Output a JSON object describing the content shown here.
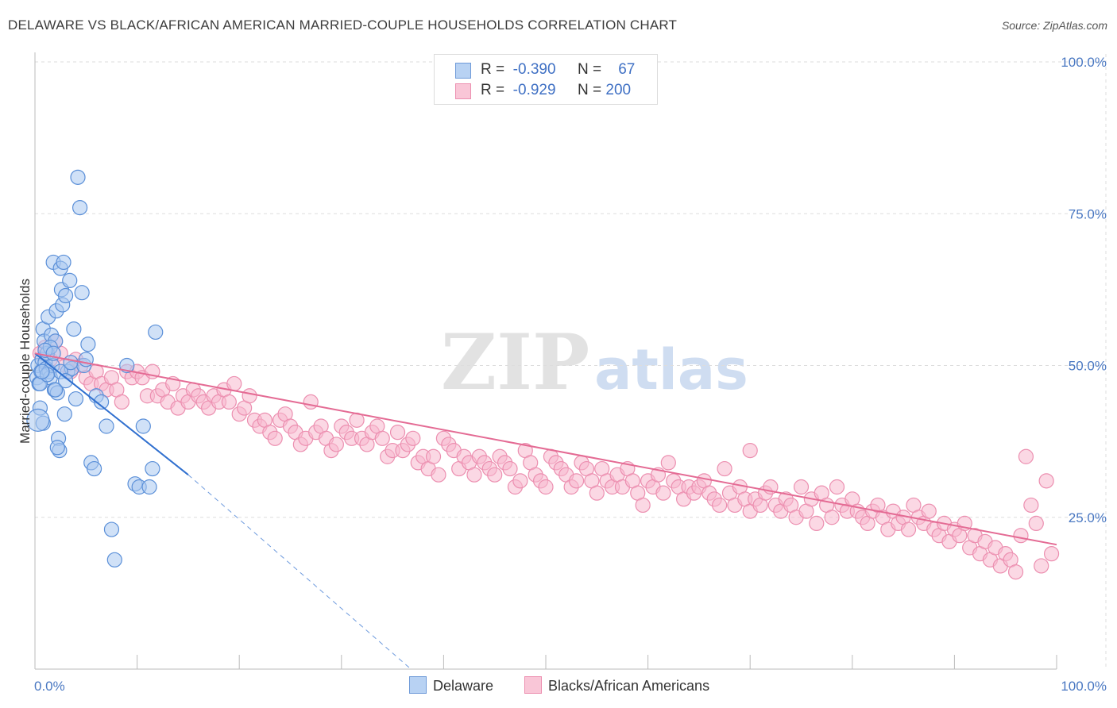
{
  "title": "DELAWARE VS BLACK/AFRICAN AMERICAN MARRIED-COUPLE HOUSEHOLDS CORRELATION CHART",
  "source": "Source: ZipAtlas.com",
  "watermark": {
    "zip": "ZIP",
    "atlas": "atlas"
  },
  "stats": [
    {
      "r_label": "R =",
      "r_value": "-0.390",
      "n_label": "N =",
      "n_value": "67"
    },
    {
      "r_label": "R =",
      "r_value": "-0.929",
      "n_label": "N =",
      "n_value": "200"
    }
  ],
  "legend": [
    {
      "label": "Delaware"
    },
    {
      "label": "Blacks/African Americans"
    }
  ],
  "colors": {
    "delaware_fill": "#aac8f0",
    "delaware_stroke": "#5a8fd8",
    "delaware_line": "#2f6fcf",
    "black_fill": "#f7b8cd",
    "black_stroke": "#ec8fb0",
    "black_line": "#e46b94",
    "tick_text": "#4a78c2",
    "grid": "#dddddd"
  },
  "chart_data": {
    "type": "scatter",
    "title": "DELAWARE VS BLACK/AFRICAN AMERICAN MARRIED-COUPLE HOUSEHOLDS CORRELATION CHART",
    "xlabel": "",
    "ylabel": "Married-couple Households",
    "xlim": [
      0,
      100
    ],
    "ylim": [
      0,
      100
    ],
    "x_tick_labels": [
      {
        "value": 0,
        "label": "0.0%"
      },
      {
        "value": 100,
        "label": "100.0%"
      }
    ],
    "y_tick_labels": [
      {
        "value": 25,
        "label": "25.0%"
      },
      {
        "value": 50,
        "label": "50.0%"
      },
      {
        "value": 75,
        "label": "75.0%"
      },
      {
        "value": 100,
        "label": "100.0%"
      }
    ],
    "grid": true,
    "legend_position": "bottom",
    "series": [
      {
        "name": "Delaware",
        "r": -0.39,
        "n": 67,
        "trend": {
          "x0": 0.0,
          "y0": 52.0,
          "x1": 15.0,
          "y1": 32.0,
          "dash_to_x": 36.8,
          "dash_to_y": 0.0
        },
        "points": [
          [
            0.2,
            48.0
          ],
          [
            0.3,
            50.0
          ],
          [
            0.4,
            47.0
          ],
          [
            0.5,
            43.0
          ],
          [
            0.6,
            49.0
          ],
          [
            0.7,
            51.0
          ],
          [
            0.8,
            56.0
          ],
          [
            0.9,
            54.0
          ],
          [
            1.0,
            50.5
          ],
          [
            1.1,
            49.5
          ],
          [
            1.2,
            52.0
          ],
          [
            1.3,
            58.0
          ],
          [
            1.4,
            49.0
          ],
          [
            1.5,
            48.0
          ],
          [
            1.6,
            55.0
          ],
          [
            1.7,
            50.0
          ],
          [
            1.8,
            67.0
          ],
          [
            1.9,
            46.0
          ],
          [
            2.0,
            54.0
          ],
          [
            2.1,
            59.0
          ],
          [
            2.2,
            45.5
          ],
          [
            2.3,
            38.0
          ],
          [
            2.4,
            36.0
          ],
          [
            2.5,
            66.0
          ],
          [
            2.6,
            62.5
          ],
          [
            2.7,
            60.0
          ],
          [
            2.8,
            67.0
          ],
          [
            2.9,
            42.0
          ],
          [
            3.0,
            61.5
          ],
          [
            3.2,
            49.0
          ],
          [
            3.4,
            64.0
          ],
          [
            3.6,
            49.5
          ],
          [
            3.8,
            56.0
          ],
          [
            4.0,
            44.5
          ],
          [
            4.2,
            81.0
          ],
          [
            4.4,
            76.0
          ],
          [
            4.6,
            62.0
          ],
          [
            4.8,
            50.0
          ],
          [
            5.0,
            51.0
          ],
          [
            5.2,
            53.5
          ],
          [
            5.5,
            34.0
          ],
          [
            5.8,
            33.0
          ],
          [
            6.0,
            45.0
          ],
          [
            6.5,
            44.0
          ],
          [
            7.0,
            40.0
          ],
          [
            7.5,
            23.0
          ],
          [
            7.8,
            18.0
          ],
          [
            9.0,
            50.0
          ],
          [
            9.8,
            30.5
          ],
          [
            10.2,
            30.0
          ],
          [
            10.6,
            40.0
          ],
          [
            11.2,
            30.0
          ],
          [
            11.8,
            55.5
          ],
          [
            11.5,
            33.0
          ],
          [
            0.8,
            40.5
          ],
          [
            1.5,
            53.0
          ],
          [
            2.0,
            46.0
          ],
          [
            0.5,
            47.0
          ],
          [
            1.0,
            52.5
          ],
          [
            2.5,
            49.0
          ],
          [
            3.0,
            47.5
          ],
          [
            0.3,
            41.0
          ],
          [
            1.2,
            48.5
          ],
          [
            3.5,
            50.5
          ],
          [
            0.7,
            49.0
          ],
          [
            2.2,
            36.5
          ],
          [
            1.8,
            52.0
          ]
        ]
      },
      {
        "name": "Blacks/African Americans",
        "r": -0.929,
        "n": 200,
        "trend": {
          "x0": 0.0,
          "y0": 52.0,
          "x1": 100.0,
          "y1": 20.5
        },
        "points": [
          [
            0.5,
            52
          ],
          [
            1,
            53
          ],
          [
            1.5,
            51
          ],
          [
            2,
            54
          ],
          [
            2.5,
            52
          ],
          [
            3,
            50
          ],
          [
            3.5,
            49
          ],
          [
            4,
            51
          ],
          [
            4.5,
            50
          ],
          [
            5,
            48
          ],
          [
            5.5,
            47
          ],
          [
            6,
            49
          ],
          [
            6.5,
            47
          ],
          [
            7,
            46
          ],
          [
            7.5,
            48
          ],
          [
            8,
            46
          ],
          [
            8.5,
            44
          ],
          [
            9,
            49
          ],
          [
            9.5,
            48
          ],
          [
            10,
            49
          ],
          [
            10.5,
            48
          ],
          [
            11,
            45
          ],
          [
            11.5,
            49
          ],
          [
            12,
            45
          ],
          [
            12.5,
            46
          ],
          [
            13,
            44
          ],
          [
            13.5,
            47
          ],
          [
            14,
            43
          ],
          [
            14.5,
            45
          ],
          [
            15,
            44
          ],
          [
            15.5,
            46
          ],
          [
            16,
            45
          ],
          [
            16.5,
            44
          ],
          [
            17,
            43
          ],
          [
            17.5,
            45
          ],
          [
            18,
            44
          ],
          [
            18.5,
            46
          ],
          [
            19,
            44
          ],
          [
            19.5,
            47
          ],
          [
            20,
            42
          ],
          [
            20.5,
            43
          ],
          [
            21,
            45
          ],
          [
            21.5,
            41
          ],
          [
            22,
            40
          ],
          [
            22.5,
            41
          ],
          [
            23,
            39
          ],
          [
            23.5,
            38
          ],
          [
            24,
            41
          ],
          [
            24.5,
            42
          ],
          [
            25,
            40
          ],
          [
            25.5,
            39
          ],
          [
            26,
            37
          ],
          [
            26.5,
            38
          ],
          [
            27,
            44
          ],
          [
            27.5,
            39
          ],
          [
            28,
            40
          ],
          [
            28.5,
            38
          ],
          [
            29,
            36
          ],
          [
            29.5,
            37
          ],
          [
            30,
            40
          ],
          [
            30.5,
            39
          ],
          [
            31,
            38
          ],
          [
            31.5,
            41
          ],
          [
            32,
            38
          ],
          [
            32.5,
            37
          ],
          [
            33,
            39
          ],
          [
            33.5,
            40
          ],
          [
            34,
            38
          ],
          [
            34.5,
            35
          ],
          [
            35,
            36
          ],
          [
            35.5,
            39
          ],
          [
            36,
            36
          ],
          [
            36.5,
            37
          ],
          [
            37,
            38
          ],
          [
            37.5,
            34
          ],
          [
            38,
            35
          ],
          [
            38.5,
            33
          ],
          [
            39,
            35
          ],
          [
            39.5,
            32
          ],
          [
            40,
            38
          ],
          [
            40.5,
            37
          ],
          [
            41,
            36
          ],
          [
            41.5,
            33
          ],
          [
            42,
            35
          ],
          [
            42.5,
            34
          ],
          [
            43,
            32
          ],
          [
            43.5,
            35
          ],
          [
            44,
            34
          ],
          [
            44.5,
            33
          ],
          [
            45,
            32
          ],
          [
            45.5,
            35
          ],
          [
            46,
            34
          ],
          [
            46.5,
            33
          ],
          [
            47,
            30
          ],
          [
            47.5,
            31
          ],
          [
            48,
            36
          ],
          [
            48.5,
            34
          ],
          [
            49,
            32
          ],
          [
            49.5,
            31
          ],
          [
            50,
            30
          ],
          [
            50.5,
            35
          ],
          [
            51,
            34
          ],
          [
            51.5,
            33
          ],
          [
            52,
            32
          ],
          [
            52.5,
            30
          ],
          [
            53,
            31
          ],
          [
            53.5,
            34
          ],
          [
            54,
            33
          ],
          [
            54.5,
            31
          ],
          [
            55,
            29
          ],
          [
            55.5,
            33
          ],
          [
            56,
            31
          ],
          [
            56.5,
            30
          ],
          [
            57,
            32
          ],
          [
            57.5,
            30
          ],
          [
            58,
            33
          ],
          [
            58.5,
            31
          ],
          [
            59,
            29
          ],
          [
            59.5,
            27
          ],
          [
            60,
            31
          ],
          [
            60.5,
            30
          ],
          [
            61,
            32
          ],
          [
            61.5,
            29
          ],
          [
            62,
            34
          ],
          [
            62.5,
            31
          ],
          [
            63,
            30
          ],
          [
            63.5,
            28
          ],
          [
            64,
            30
          ],
          [
            64.5,
            29
          ],
          [
            65,
            30
          ],
          [
            65.5,
            31
          ],
          [
            66,
            29
          ],
          [
            66.5,
            28
          ],
          [
            67,
            27
          ],
          [
            67.5,
            33
          ],
          [
            68,
            29
          ],
          [
            68.5,
            27
          ],
          [
            69,
            30
          ],
          [
            69.5,
            28
          ],
          [
            70,
            26
          ],
          [
            70.5,
            28
          ],
          [
            71,
            27
          ],
          [
            71.5,
            29
          ],
          [
            72,
            30
          ],
          [
            72.5,
            27
          ],
          [
            73,
            26
          ],
          [
            73.5,
            28
          ],
          [
            74,
            27
          ],
          [
            74.5,
            25
          ],
          [
            75,
            30
          ],
          [
            75.5,
            26
          ],
          [
            76,
            28
          ],
          [
            76.5,
            24
          ],
          [
            77,
            29
          ],
          [
            77.5,
            27
          ],
          [
            78,
            25
          ],
          [
            78.5,
            30
          ],
          [
            79,
            27
          ],
          [
            79.5,
            26
          ],
          [
            80,
            28
          ],
          [
            80.5,
            26
          ],
          [
            81,
            25
          ],
          [
            81.5,
            24
          ],
          [
            82,
            26
          ],
          [
            82.5,
            27
          ],
          [
            83,
            25
          ],
          [
            83.5,
            23
          ],
          [
            84,
            26
          ],
          [
            84.5,
            24
          ],
          [
            85,
            25
          ],
          [
            85.5,
            23
          ],
          [
            86,
            27
          ],
          [
            86.5,
            25
          ],
          [
            87,
            24
          ],
          [
            87.5,
            26
          ],
          [
            88,
            23
          ],
          [
            88.5,
            22
          ],
          [
            89,
            24
          ],
          [
            89.5,
            21
          ],
          [
            90,
            23
          ],
          [
            90.5,
            22
          ],
          [
            91,
            24
          ],
          [
            91.5,
            20
          ],
          [
            92,
            22
          ],
          [
            92.5,
            19
          ],
          [
            93,
            21
          ],
          [
            93.5,
            18
          ],
          [
            94,
            20
          ],
          [
            94.5,
            17
          ],
          [
            95,
            19
          ],
          [
            95.5,
            18
          ],
          [
            96,
            16
          ],
          [
            96.5,
            22
          ],
          [
            97,
            35
          ],
          [
            97.5,
            27
          ],
          [
            98,
            24
          ],
          [
            98.5,
            17
          ],
          [
            99,
            31
          ],
          [
            99.5,
            19
          ],
          [
            70,
            36
          ]
        ]
      }
    ]
  }
}
